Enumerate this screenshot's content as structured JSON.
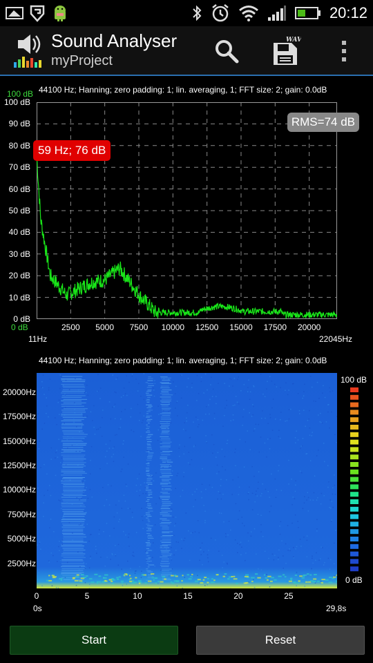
{
  "status_bar": {
    "time": "20:12",
    "icons": [
      "photo-icon",
      "shield-icon",
      "android-icon",
      "bluetooth-icon",
      "alarm-icon",
      "wifi-icon",
      "signal-icon",
      "battery-icon"
    ]
  },
  "app_bar": {
    "title": "Sound Analyser",
    "subtitle": "myProject",
    "save_badge": "WAV",
    "actions": [
      "search-icon",
      "save-wav-icon",
      "overflow-menu-icon"
    ]
  },
  "spectrum": {
    "info": "44100 Hz; Hanning; zero padding: 1; lin. averaging, 1; FFT size: 2; gain: 0.0dB",
    "level_top": "100 dB",
    "level_bottom": "0 dB",
    "y_labels": [
      "100 dB",
      "90 dB",
      "80 dB",
      "70 dB",
      "60 dB",
      "50 dB",
      "40 dB",
      "30 dB",
      "20 dB",
      "10 dB",
      "0 dB"
    ],
    "x_labels": [
      "2500",
      "5000",
      "7500",
      "10000",
      "12500",
      "15000",
      "17500",
      "20000"
    ],
    "x_min": "11Hz",
    "x_max": "22045Hz",
    "rms": "RMS=74 dB",
    "peak": "59 Hz; 76 dB",
    "line_color": "#19e619"
  },
  "spectrogram": {
    "info": "44100 Hz; Hanning; zero padding: 1; lin. averaging, 1; FFT size: 2; gain: 0.0dB",
    "y_labels": [
      "20000Hz",
      "17500Hz",
      "15000Hz",
      "12500Hz",
      "10000Hz",
      "7500Hz",
      "5000Hz",
      "2500Hz"
    ],
    "x_labels": [
      "0",
      "5",
      "10",
      "15",
      "20",
      "25"
    ],
    "t_min": "0s",
    "t_max": "29,8s",
    "scale_top": "100 dB",
    "scale_bottom": "0 dB",
    "background_color": "#1e63d8"
  },
  "buttons": {
    "start": "Start",
    "reset": "Reset"
  }
}
